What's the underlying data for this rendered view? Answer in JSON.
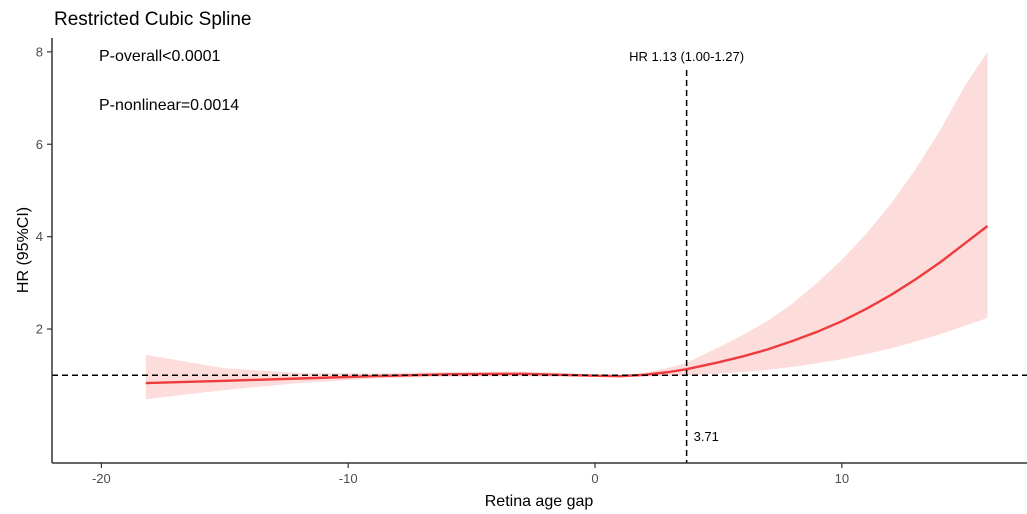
{
  "chart_data": {
    "type": "line",
    "title": "Restricted Cubic Spline",
    "xlabel": "Retina age gap",
    "ylabel": "HR (95%CI)",
    "xlim": [
      -22.0,
      17.5
    ],
    "ylim": [
      -0.9,
      8.3
    ],
    "x_ticks": [
      {
        "value": -20,
        "label": "-20"
      },
      {
        "value": -10,
        "label": "-10"
      },
      {
        "value": 0,
        "label": "0"
      },
      {
        "value": 10,
        "label": "10"
      }
    ],
    "y_ticks": [
      {
        "value": 2,
        "label": "2"
      },
      {
        "value": 4,
        "label": "4"
      },
      {
        "value": 6,
        "label": "6"
      },
      {
        "value": 8,
        "label": "8"
      }
    ],
    "grid": false,
    "reference_lines": {
      "hline_y": 1.0,
      "vline_x": 3.71
    },
    "annotations": {
      "p_overall": "P-overall<0.0001",
      "p_nonlinear": "P-nonlinear=0.0014",
      "hr_label": "HR 1.13 (1.00-1.27)",
      "vline_label": "3.71"
    },
    "series": [
      {
        "color": "#ef3b3b",
        "band_color": "#fddcdc",
        "x": [
          -18.2,
          -15,
          -12,
          -9,
          -6,
          -3,
          0,
          1,
          2,
          3,
          3.71,
          5,
          6,
          7,
          8,
          9,
          10,
          11,
          12,
          13,
          14,
          15,
          15.9
        ],
        "y": [
          0.83,
          0.88,
          0.93,
          0.98,
          1.02,
          1.03,
          0.99,
          0.98,
          1.01,
          1.07,
          1.13,
          1.28,
          1.41,
          1.56,
          1.74,
          1.94,
          2.17,
          2.44,
          2.74,
          3.08,
          3.45,
          3.86,
          4.23
        ],
        "lower": [
          0.48,
          0.68,
          0.83,
          0.93,
          0.97,
          0.98,
          0.96,
          0.95,
          0.97,
          0.99,
          1.0,
          1.03,
          1.07,
          1.12,
          1.18,
          1.26,
          1.35,
          1.46,
          1.58,
          1.73,
          1.89,
          2.07,
          2.24
        ],
        "upper": [
          1.44,
          1.15,
          1.05,
          1.04,
          1.07,
          1.08,
          1.02,
          1.01,
          1.05,
          1.16,
          1.27,
          1.6,
          1.87,
          2.18,
          2.55,
          3.0,
          3.5,
          4.07,
          4.72,
          5.47,
          6.32,
          7.28,
          8.0
        ]
      }
    ]
  }
}
